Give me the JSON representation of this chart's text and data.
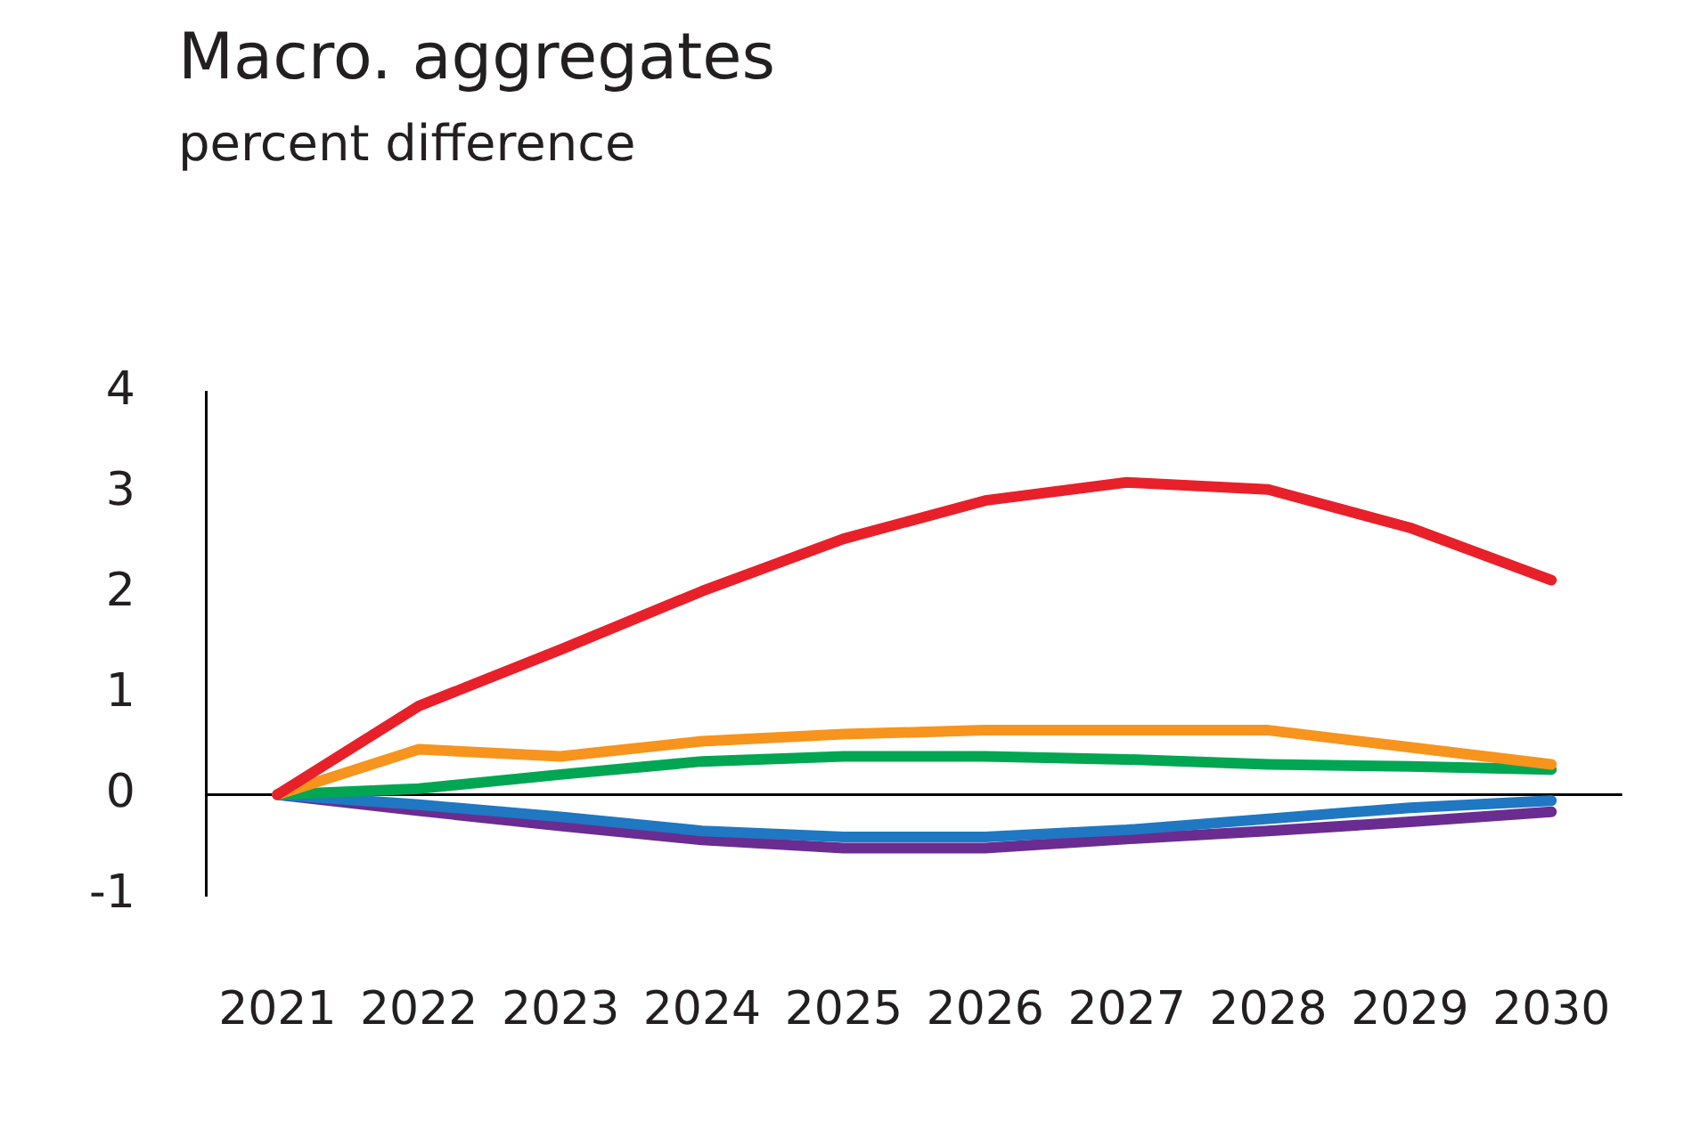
{
  "chart_data": {
    "type": "line",
    "title": "Macro. aggregates",
    "subtitle": "percent difference",
    "categories": [
      "2021",
      "2022",
      "2023",
      "2024",
      "2025",
      "2026",
      "2027",
      "2028",
      "2029",
      "2030"
    ],
    "series": [
      {
        "color": "#e8202a",
        "values": [
          0,
          0.88,
          1.44,
          2.02,
          2.54,
          2.92,
          3.1,
          3.03,
          2.65,
          2.13
        ]
      },
      {
        "color": "#f7941d",
        "values": [
          0,
          0.45,
          0.38,
          0.53,
          0.6,
          0.64,
          0.64,
          0.64,
          0.47,
          0.3
        ]
      },
      {
        "color": "#00a651",
        "values": [
          0,
          0.06,
          0.2,
          0.33,
          0.38,
          0.38,
          0.35,
          0.3,
          0.28,
          0.25
        ]
      },
      {
        "color": "#1f78c1",
        "values": [
          0,
          -0.1,
          -0.22,
          -0.36,
          -0.42,
          -0.42,
          -0.35,
          -0.24,
          -0.13,
          -0.06
        ]
      },
      {
        "color": "#6a2c91",
        "values": [
          0,
          -0.16,
          -0.31,
          -0.45,
          -0.53,
          -0.53,
          -0.44,
          -0.36,
          -0.27,
          -0.17
        ]
      }
    ],
    "ylim": [
      -1,
      4
    ],
    "yticks": [
      -1,
      0,
      1,
      2,
      3,
      4
    ],
    "ref_lines": [
      {
        "axis": "y",
        "value": 0,
        "color": "#000000"
      }
    ],
    "grid": false,
    "legend": false,
    "marker": "none",
    "line_style": "solid"
  }
}
